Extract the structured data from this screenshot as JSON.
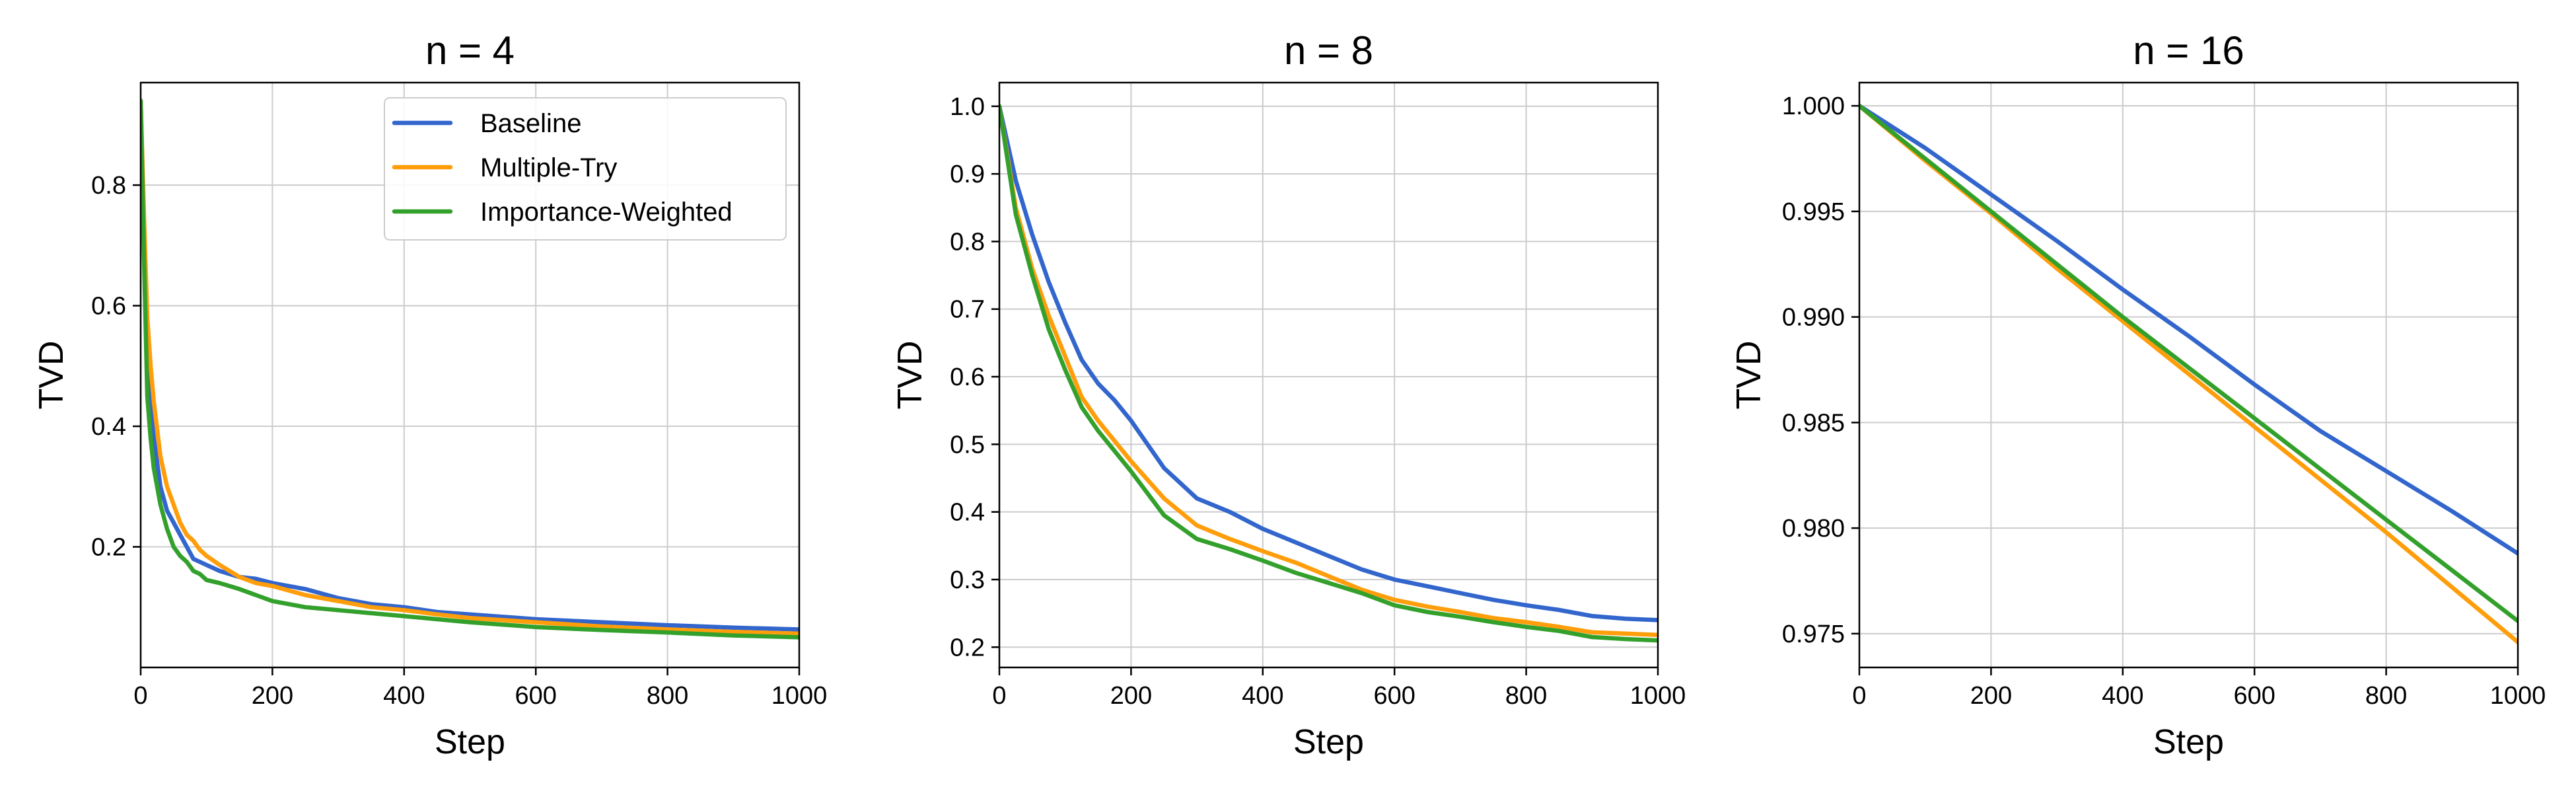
{
  "colors": {
    "Baseline": "#3366cc",
    "Multiple-Try": "#ff9d0a",
    "Importance-Weighted": "#33a02c"
  },
  "chart_data": [
    {
      "type": "line",
      "title": "n = 4",
      "xlabel": "Step",
      "ylabel": "TVD",
      "xlim": [
        0,
        1000
      ],
      "ylim": [
        0.0,
        0.97
      ],
      "xticks": [
        0,
        200,
        400,
        600,
        800,
        1000
      ],
      "yticks": [
        0.2,
        0.4,
        0.6,
        0.8
      ],
      "ytick_labels": [
        "0.2",
        "0.4",
        "0.6",
        "0.8"
      ],
      "grid": true,
      "legend": "upper right",
      "x": [
        0,
        5,
        10,
        15,
        20,
        30,
        40,
        50,
        60,
        70,
        80,
        90,
        100,
        120,
        150,
        175,
        200,
        250,
        300,
        350,
        400,
        450,
        500,
        600,
        700,
        800,
        900,
        1000
      ],
      "series": [
        {
          "name": "Baseline",
          "values": [
            0.94,
            0.72,
            0.5,
            0.43,
            0.38,
            0.3,
            0.26,
            0.24,
            0.22,
            0.2,
            0.18,
            0.175,
            0.17,
            0.16,
            0.15,
            0.147,
            0.14,
            0.13,
            0.115,
            0.105,
            0.1,
            0.092,
            0.088,
            0.08,
            0.075,
            0.07,
            0.066,
            0.063
          ]
        },
        {
          "name": "Multiple-Try",
          "values": [
            0.94,
            0.75,
            0.58,
            0.5,
            0.44,
            0.35,
            0.3,
            0.27,
            0.24,
            0.22,
            0.21,
            0.195,
            0.185,
            0.17,
            0.15,
            0.14,
            0.135,
            0.12,
            0.11,
            0.1,
            0.095,
            0.088,
            0.082,
            0.075,
            0.068,
            0.063,
            0.059,
            0.056
          ]
        },
        {
          "name": "Importance-Weighted",
          "values": [
            0.94,
            0.68,
            0.45,
            0.38,
            0.33,
            0.27,
            0.23,
            0.2,
            0.185,
            0.175,
            0.16,
            0.155,
            0.145,
            0.14,
            0.13,
            0.12,
            0.11,
            0.1,
            0.095,
            0.09,
            0.085,
            0.08,
            0.075,
            0.067,
            0.062,
            0.058,
            0.053,
            0.05
          ]
        }
      ]
    },
    {
      "type": "line",
      "title": "n = 8",
      "xlabel": "Step",
      "ylabel": "TVD",
      "xlim": [
        0,
        1000
      ],
      "ylim": [
        0.17,
        1.035
      ],
      "xticks": [
        0,
        200,
        400,
        600,
        800,
        1000
      ],
      "yticks": [
        0.2,
        0.3,
        0.4,
        0.5,
        0.6,
        0.7,
        0.8,
        0.9,
        1.0
      ],
      "ytick_labels": [
        "0.2",
        "0.3",
        "0.4",
        "0.5",
        "0.6",
        "0.7",
        "0.8",
        "0.9",
        "1.0"
      ],
      "grid": true,
      "x": [
        0,
        25,
        50,
        75,
        100,
        125,
        150,
        175,
        200,
        250,
        300,
        350,
        400,
        450,
        500,
        550,
        600,
        650,
        700,
        750,
        800,
        850,
        900,
        950,
        1000
      ],
      "series": [
        {
          "name": "Baseline",
          "values": [
            1.0,
            0.89,
            0.81,
            0.74,
            0.68,
            0.625,
            0.59,
            0.565,
            0.535,
            0.465,
            0.42,
            0.4,
            0.375,
            0.355,
            0.335,
            0.315,
            0.3,
            0.29,
            0.28,
            0.27,
            0.262,
            0.255,
            0.246,
            0.242,
            0.24
          ]
        },
        {
          "name": "Multiple-Try",
          "values": [
            1.0,
            0.85,
            0.76,
            0.69,
            0.63,
            0.57,
            0.535,
            0.505,
            0.475,
            0.42,
            0.38,
            0.36,
            0.342,
            0.325,
            0.305,
            0.285,
            0.27,
            0.26,
            0.252,
            0.243,
            0.237,
            0.23,
            0.222,
            0.22,
            0.218
          ]
        },
        {
          "name": "Importance-Weighted",
          "values": [
            1.0,
            0.84,
            0.75,
            0.67,
            0.61,
            0.555,
            0.52,
            0.49,
            0.46,
            0.395,
            0.36,
            0.345,
            0.328,
            0.31,
            0.295,
            0.28,
            0.262,
            0.252,
            0.245,
            0.237,
            0.23,
            0.224,
            0.215,
            0.212,
            0.21
          ]
        }
      ]
    },
    {
      "type": "line",
      "title": "n = 16",
      "xlabel": "Step",
      "ylabel": "TVD",
      "xlim": [
        0,
        1000
      ],
      "ylim": [
        0.9734,
        1.0011
      ],
      "xticks": [
        0,
        200,
        400,
        600,
        800,
        1000
      ],
      "yticks": [
        0.975,
        0.98,
        0.985,
        0.99,
        0.995,
        1.0
      ],
      "ytick_labels": [
        "0.975",
        "0.980",
        "0.985",
        "0.990",
        "0.995",
        "1.000"
      ],
      "grid": true,
      "x": [
        0,
        100,
        200,
        300,
        400,
        500,
        600,
        700,
        800,
        900,
        1000
      ],
      "series": [
        {
          "name": "Baseline",
          "values": [
            1.0,
            0.998,
            0.9958,
            0.9936,
            0.9913,
            0.9891,
            0.9868,
            0.9846,
            0.9827,
            0.9808,
            0.9788
          ]
        },
        {
          "name": "Multiple-Try",
          "values": [
            1.0,
            0.9974,
            0.9949,
            0.9923,
            0.9898,
            0.9873,
            0.9848,
            0.9823,
            0.9798,
            0.9772,
            0.9746
          ]
        },
        {
          "name": "Importance-Weighted",
          "values": [
            1.0,
            0.9975,
            0.995,
            0.9925,
            0.99,
            0.9876,
            0.9852,
            0.9828,
            0.9804,
            0.978,
            0.9756
          ]
        }
      ]
    }
  ]
}
